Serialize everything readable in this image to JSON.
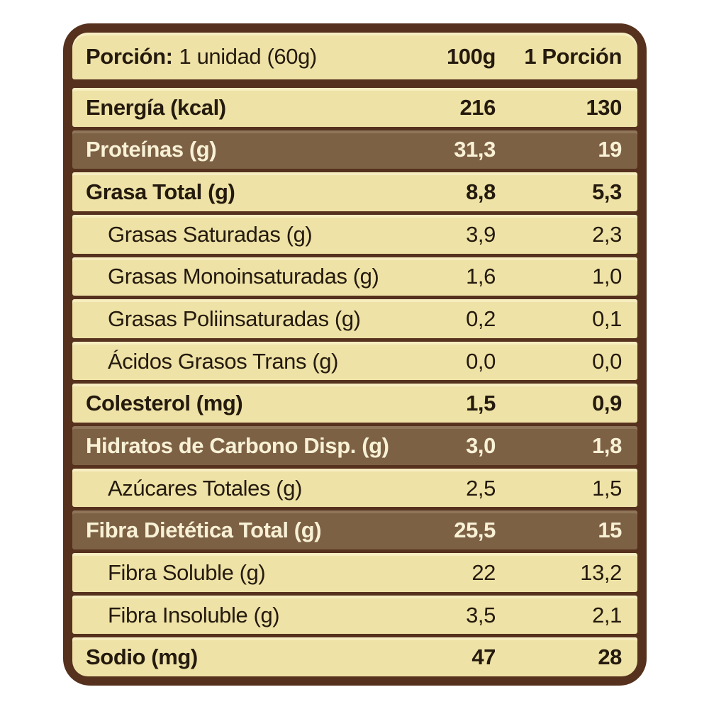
{
  "header": {
    "serving_label": "Porción:",
    "serving_value": "1 unidad (60g)",
    "col_100g": "100g",
    "col_portion": "1 Porción"
  },
  "rows": [
    {
      "name": "Energía (kcal)",
      "v100": "216",
      "vp": "130",
      "style": "bold"
    },
    {
      "name": "Proteínas (g)",
      "v100": "31,3",
      "vp": "19",
      "style": "highlight"
    },
    {
      "name": "Grasa Total (g)",
      "v100": "8,8",
      "vp": "5,3",
      "style": "bold"
    },
    {
      "name": "Grasas Saturadas (g)",
      "v100": "3,9",
      "vp": "2,3",
      "style": "sub"
    },
    {
      "name": "Grasas Monoinsaturadas (g)",
      "v100": "1,6",
      "vp": "1,0",
      "style": "sub"
    },
    {
      "name": "Grasas Poliinsaturadas (g)",
      "v100": "0,2",
      "vp": "0,1",
      "style": "sub"
    },
    {
      "name": "Ácidos Grasos Trans (g)",
      "v100": "0,0",
      "vp": "0,0",
      "style": "sub"
    },
    {
      "name": "Colesterol (mg)",
      "v100": "1,5",
      "vp": "0,9",
      "style": "bold"
    },
    {
      "name": "Hidratos de Carbono Disp. (g)",
      "v100": "3,0",
      "vp": "1,8",
      "style": "highlight"
    },
    {
      "name": "Azúcares Totales (g)",
      "v100": "2,5",
      "vp": "1,5",
      "style": "sub"
    },
    {
      "name": "Fibra Dietética Total (g)",
      "v100": "25,5",
      "vp": "15",
      "style": "highlight"
    },
    {
      "name": "Fibra Soluble (g)",
      "v100": "22",
      "vp": "13,2",
      "style": "sub"
    },
    {
      "name": "Fibra Insoluble (g)",
      "v100": "3,5",
      "vp": "2,1",
      "style": "sub"
    },
    {
      "name": "Sodio (mg)",
      "v100": "47",
      "vp": "28",
      "style": "bold"
    }
  ],
  "colors": {
    "border_brown": "#55311e",
    "row_cream": "#eee2a6",
    "highlight_brown": "#7d6144",
    "text_dark": "#241a0e",
    "text_cream": "#f8f1d6"
  }
}
